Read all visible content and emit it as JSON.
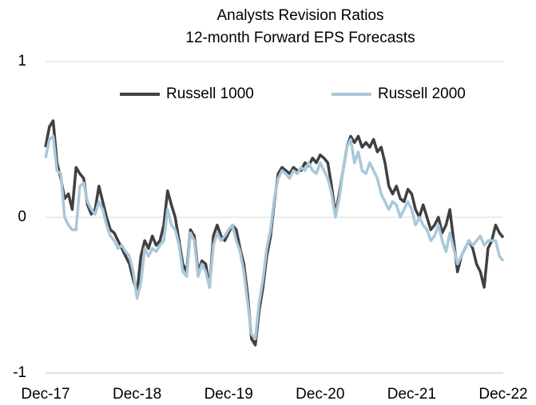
{
  "chart_data": {
    "type": "line",
    "title": "Analysts Revision Ratios",
    "subtitle": "12-month Forward EPS Forecasts",
    "categories": [
      "Dec-17",
      null,
      null,
      null,
      null,
      null,
      null,
      null,
      null,
      null,
      null,
      null,
      null,
      null,
      null,
      null,
      null,
      null,
      null,
      null,
      null,
      null,
      null,
      null,
      "Dec-18",
      null,
      null,
      null,
      null,
      null,
      null,
      null,
      null,
      null,
      null,
      null,
      null,
      null,
      null,
      null,
      null,
      null,
      null,
      null,
      null,
      null,
      null,
      null,
      "Dec-19",
      null,
      null,
      null,
      null,
      null,
      null,
      null,
      null,
      null,
      null,
      null,
      null,
      null,
      null,
      null,
      null,
      null,
      null,
      null,
      null,
      null,
      null,
      null,
      "Dec-20",
      null,
      null,
      null,
      null,
      null,
      null,
      null,
      null,
      null,
      null,
      null,
      null,
      null,
      null,
      null,
      null,
      null,
      null,
      null,
      null,
      null,
      null,
      null,
      "Dec-21",
      null,
      null,
      null,
      null,
      null,
      null,
      null,
      null,
      null,
      null,
      null,
      null,
      null,
      null,
      null,
      null,
      null,
      null,
      null,
      null,
      null,
      null,
      null,
      "Dec-22"
    ],
    "series": [
      {
        "name": "Russell 1000",
        "color": "#404040",
        "values": [
          0.45,
          0.58,
          0.62,
          0.35,
          0.25,
          0.12,
          0.15,
          0.05,
          0.32,
          0.28,
          0.25,
          0.08,
          0.02,
          0.05,
          0.2,
          0.1,
          0.0,
          -0.08,
          -0.1,
          -0.15,
          -0.2,
          -0.25,
          -0.3,
          -0.4,
          -0.48,
          -0.25,
          -0.15,
          -0.2,
          -0.12,
          -0.18,
          -0.15,
          -0.05,
          0.17,
          0.08,
          0.0,
          -0.15,
          -0.3,
          -0.35,
          -0.08,
          -0.12,
          -0.35,
          -0.28,
          -0.3,
          -0.45,
          -0.12,
          -0.05,
          -0.12,
          -0.15,
          -0.1,
          -0.05,
          -0.08,
          -0.2,
          -0.3,
          -0.5,
          -0.78,
          -0.82,
          -0.6,
          -0.45,
          -0.25,
          -0.12,
          0.1,
          0.28,
          0.32,
          0.3,
          0.28,
          0.32,
          0.3,
          0.3,
          0.35,
          0.33,
          0.38,
          0.35,
          0.4,
          0.38,
          0.35,
          0.2,
          0.02,
          0.15,
          0.3,
          0.45,
          0.52,
          0.48,
          0.52,
          0.45,
          0.48,
          0.45,
          0.5,
          0.42,
          0.45,
          0.35,
          0.2,
          0.15,
          0.2,
          0.12,
          0.1,
          0.18,
          0.15,
          0.05,
          0.0,
          0.08,
          0.0,
          -0.08,
          -0.05,
          0.0,
          -0.1,
          -0.05,
          0.05,
          -0.15,
          -0.35,
          -0.25,
          -0.2,
          -0.15,
          -0.2,
          -0.3,
          -0.35,
          -0.45,
          -0.2,
          -0.15,
          -0.05,
          -0.1,
          -0.13
        ]
      },
      {
        "name": "Russell 2000",
        "color": "#a9c8da",
        "values": [
          0.38,
          0.5,
          0.52,
          0.3,
          0.28,
          0.0,
          -0.05,
          -0.08,
          -0.08,
          0.2,
          0.22,
          0.1,
          0.05,
          0.02,
          0.1,
          0.05,
          -0.05,
          -0.12,
          -0.15,
          -0.2,
          -0.18,
          -0.22,
          -0.25,
          -0.35,
          -0.52,
          -0.42,
          -0.2,
          -0.25,
          -0.2,
          -0.22,
          -0.18,
          -0.15,
          0.05,
          -0.05,
          -0.08,
          -0.18,
          -0.35,
          -0.38,
          -0.1,
          -0.15,
          -0.38,
          -0.3,
          -0.35,
          -0.45,
          -0.18,
          -0.1,
          -0.15,
          -0.12,
          -0.08,
          -0.05,
          -0.15,
          -0.22,
          -0.35,
          -0.55,
          -0.75,
          -0.78,
          -0.55,
          -0.4,
          -0.2,
          -0.08,
          0.12,
          0.25,
          0.3,
          0.28,
          0.25,
          0.3,
          0.28,
          0.32,
          0.3,
          0.35,
          0.3,
          0.28,
          0.35,
          0.3,
          0.25,
          0.15,
          0.0,
          0.12,
          0.3,
          0.45,
          0.5,
          0.35,
          0.42,
          0.3,
          0.28,
          0.35,
          0.3,
          0.25,
          0.15,
          0.1,
          0.05,
          0.1,
          0.08,
          0.0,
          0.05,
          0.1,
          0.05,
          -0.05,
          0.0,
          -0.05,
          -0.08,
          -0.15,
          -0.12,
          -0.05,
          -0.15,
          -0.22,
          -0.1,
          -0.2,
          -0.3,
          -0.25,
          -0.2,
          -0.15,
          -0.18,
          -0.15,
          -0.12,
          -0.18,
          -0.15,
          -0.15,
          -0.15,
          -0.25,
          -0.28
        ]
      }
    ],
    "ylim": [
      -1,
      1
    ],
    "yticks": [
      -1,
      0,
      1
    ],
    "grid": true,
    "legend": "top"
  }
}
